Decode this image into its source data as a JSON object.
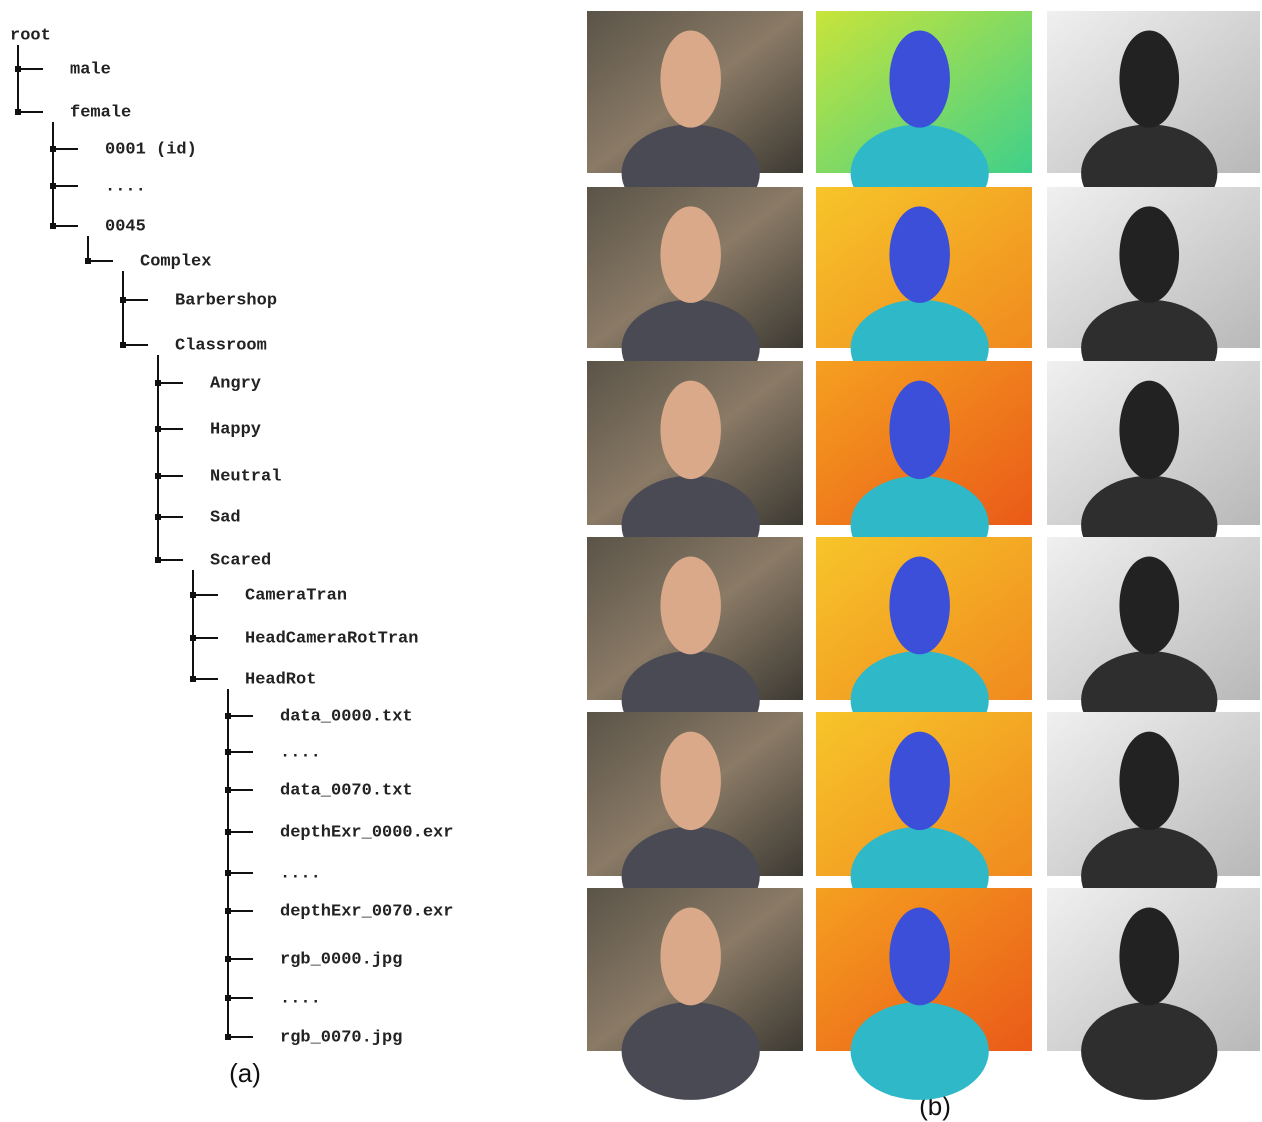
{
  "tree": {
    "label": "root",
    "children": [
      {
        "label": "male"
      },
      {
        "label": "female",
        "children": [
          {
            "label": "0001 (id)"
          },
          {
            "label": "...."
          },
          {
            "label": "0045",
            "children": [
              {
                "label": "Complex",
                "children": [
                  {
                    "label": "Barbershop"
                  },
                  {
                    "label": "Classroom",
                    "children": [
                      {
                        "label": "Angry"
                      },
                      {
                        "label": "Happy"
                      },
                      {
                        "label": "Neutral"
                      },
                      {
                        "label": "Sad"
                      },
                      {
                        "label": "Scared",
                        "children": [
                          {
                            "label": "CameraTran"
                          },
                          {
                            "label": "HeadCameraRotTran"
                          },
                          {
                            "label": "HeadRot",
                            "children": [
                              {
                                "label": "data_0000.txt"
                              },
                              {
                                "label": "...."
                              },
                              {
                                "label": "data_0070.txt"
                              },
                              {
                                "label": "depthExr_0000.exr"
                              },
                              {
                                "label": "...."
                              },
                              {
                                "label": "depthExr_0070.exr"
                              },
                              {
                                "label": "rgb_0000.jpg"
                              },
                              {
                                "label": "...."
                              },
                              {
                                "label": "rgb_0070.jpg"
                              }
                            ]
                          }
                        ]
                      }
                    ]
                  }
                ]
              }
            ]
          }
        ]
      }
    ]
  },
  "captions": {
    "a": "(a)",
    "b": "(b)"
  }
}
